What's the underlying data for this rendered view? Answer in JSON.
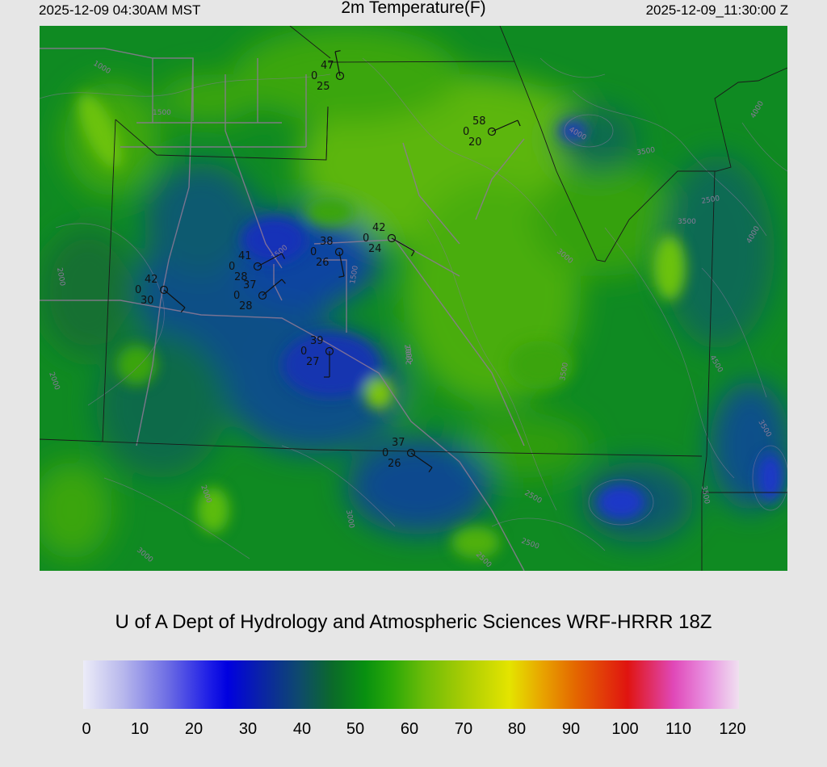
{
  "header": {
    "local_time": "2025-12-09 04:30AM MST",
    "title": "2m Temperature(F)",
    "utc_time": "2025-12-09_11:30:00 Z"
  },
  "credit": "U of A Dept of Hydrology and Atmospheric Sciences WRF-HRRR 18Z",
  "colorbar": {
    "ticks": [
      "0",
      "10",
      "20",
      "30",
      "40",
      "50",
      "60",
      "70",
      "80",
      "90",
      "100",
      "110",
      "120"
    ],
    "colors": {
      "cold": "#0000e0",
      "mid": "#089010",
      "warm": "#e4e400",
      "hot": "#e01410",
      "max": "#f0e0f0"
    }
  },
  "stations": [
    {
      "temp": "47",
      "precip": "0",
      "dew": "25"
    },
    {
      "temp": "58",
      "precip": "0",
      "dew": "20"
    },
    {
      "temp": "42",
      "precip": "0",
      "dew": "24"
    },
    {
      "temp": "38",
      "precip": "0",
      "dew": "26"
    },
    {
      "temp": "41",
      "precip": "0",
      "dew": "28"
    },
    {
      "temp": "37",
      "precip": "0",
      "dew": "28"
    },
    {
      "temp": "42",
      "precip": "0",
      "dew": "30"
    },
    {
      "temp": "39",
      "precip": "0",
      "dew": "27"
    },
    {
      "temp": "37",
      "precip": "0",
      "dew": "26"
    }
  ],
  "contour_labels": [
    "1000",
    "2000",
    "2000",
    "2000",
    "2000",
    "2500",
    "2500",
    "2500",
    "3000",
    "3500",
    "3500",
    "3500",
    "4000",
    "4000",
    "4000",
    "1500",
    "1500",
    "1500",
    "4500",
    "3000",
    "2500",
    "2000",
    "3500",
    "3000",
    "3500"
  ]
}
